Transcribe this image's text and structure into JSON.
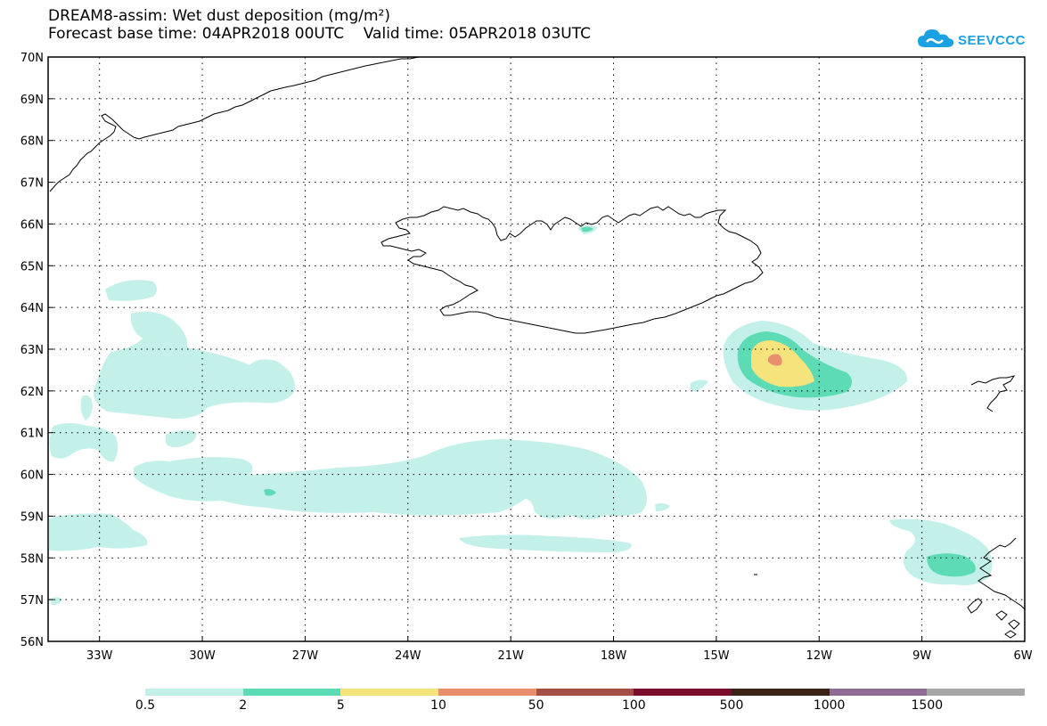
{
  "title": {
    "line1": "DREAM8-assim: Wet dust deposition (mg/m²)",
    "line2": "Forecast base time: 04APR2018 00UTC    Valid time: 05APR2018 03UTC"
  },
  "logo": {
    "text": "SEEVCCC",
    "icon": "cloud-icon",
    "color": "#1ba1e2"
  },
  "map": {
    "lon_range": [
      -34.5,
      -6
    ],
    "lat_range": [
      56,
      70
    ],
    "lon_ticks": [
      "33W",
      "30W",
      "27W",
      "24W",
      "21W",
      "18W",
      "15W",
      "12W",
      "9W",
      "6W"
    ],
    "lat_ticks": [
      "56N",
      "57N",
      "58N",
      "59N",
      "60N",
      "61N",
      "62N",
      "63N",
      "64N",
      "65N",
      "66N",
      "67N",
      "68N",
      "69N",
      "70N"
    ],
    "gridlines": "dotted"
  },
  "legend": {
    "labels": [
      "0.5",
      "2",
      "5",
      "10",
      "50",
      "100",
      "500",
      "1000",
      "1500"
    ],
    "colors": [
      "#c4f0ea",
      "#5ddbb4",
      "#f5e37b",
      "#e98f6f",
      "#a24f46",
      "#7a0f2b",
      "#3a2415",
      "#8f6b96",
      "#a6a6a6"
    ]
  }
}
